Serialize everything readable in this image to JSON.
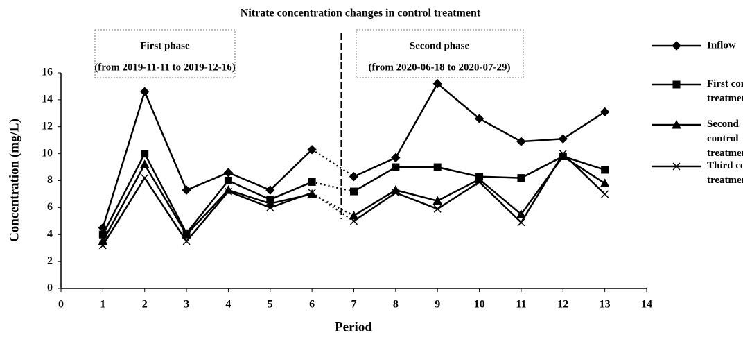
{
  "chart_data": {
    "type": "line",
    "title": "Nitrate concentration changes in control treatment",
    "xlabel": "Period",
    "ylabel": "Concentration (mg/L)",
    "x": [
      1,
      2,
      3,
      4,
      5,
      6,
      7,
      8,
      9,
      10,
      11,
      12,
      13
    ],
    "xlim": [
      0,
      14
    ],
    "xticks": [
      0,
      1,
      2,
      3,
      4,
      5,
      6,
      7,
      8,
      9,
      10,
      11,
      12,
      13,
      14
    ],
    "ylim": [
      0,
      16
    ],
    "yticks": [
      0,
      2,
      4,
      6,
      8,
      10,
      12,
      14,
      16
    ],
    "break_x": 6.7,
    "phases": [
      {
        "title": "First phase",
        "range": "(from 2019-11-11 to 2019-12-16)"
      },
      {
        "title": "Second phase",
        "range": "(from 2020-06-18 to 2020-07-29)"
      }
    ],
    "series": [
      {
        "name": "Inflow",
        "color": "#000000",
        "marker": "diamond",
        "values": [
          4.5,
          14.6,
          7.3,
          8.6,
          7.3,
          10.3,
          8.3,
          9.7,
          15.2,
          12.6,
          10.9,
          11.1,
          13.1
        ]
      },
      {
        "name": "First control treatment",
        "color": "#000000",
        "marker": "square",
        "values": [
          4.0,
          10.0,
          4.1,
          8.0,
          6.6,
          7.9,
          7.2,
          9.0,
          9.0,
          8.3,
          8.2,
          9.8,
          8.8
        ]
      },
      {
        "name": "Second control treatment",
        "color": "#000000",
        "marker": "triangle",
        "values": [
          3.5,
          9.2,
          4.0,
          7.3,
          6.3,
          7.0,
          5.4,
          7.3,
          6.5,
          8.1,
          5.5,
          9.8,
          7.8
        ]
      },
      {
        "name": "Third control treatment",
        "color": "#000000",
        "marker": "x",
        "values": [
          3.2,
          8.2,
          3.5,
          7.2,
          6.0,
          7.1,
          5.0,
          7.1,
          5.9,
          7.9,
          4.9,
          10.0,
          7.0
        ]
      }
    ]
  }
}
